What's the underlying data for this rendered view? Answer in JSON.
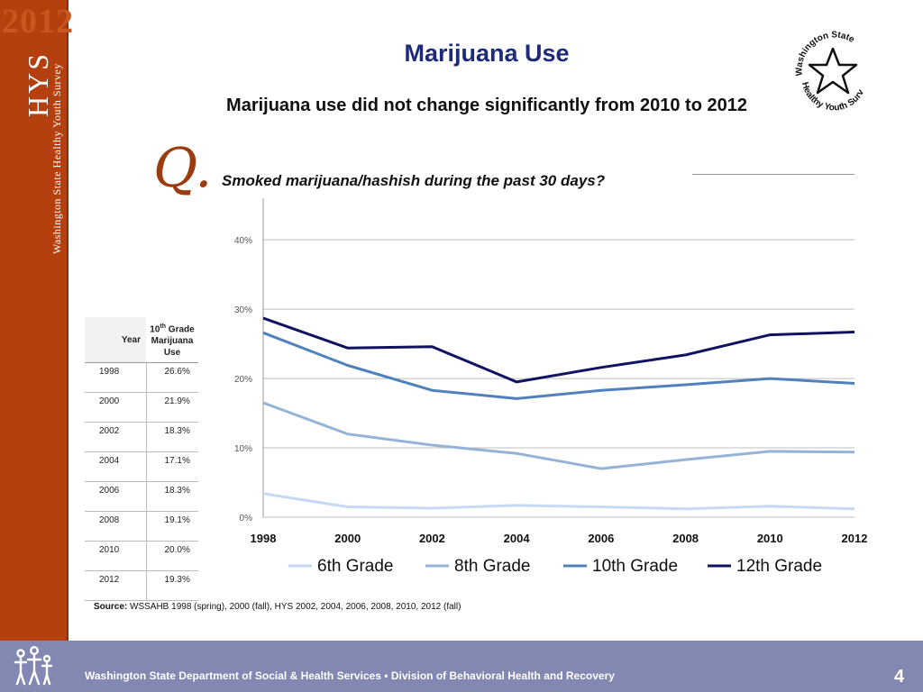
{
  "sidebar": {
    "year": "2012",
    "abbrev": "HYS",
    "name": "Washington State Healthy Youth Survey"
  },
  "header": {
    "title": "Marijuana Use",
    "subtitle": "Marijuana use did not change significantly from 2010 to 2012"
  },
  "logo": {
    "line1": "Washington State",
    "line2": "Healthy Youth Survey"
  },
  "question": {
    "marker": "Q.",
    "text": "Smoked marijuana/hashish during the past 30 days?"
  },
  "table": {
    "header_year": "Year",
    "header_value_grade": "10",
    "header_value_sup": "th",
    "header_value_rest1": " Grade",
    "header_value_rest2": "Marijuana",
    "header_value_rest3": "Use",
    "rows": [
      {
        "year": "1998",
        "value": "26.6%"
      },
      {
        "year": "2000",
        "value": "21.9%"
      },
      {
        "year": "2002",
        "value": "18.3%"
      },
      {
        "year": "2004",
        "value": "17.1%"
      },
      {
        "year": "2006",
        "value": "18.3%"
      },
      {
        "year": "2008",
        "value": "19.1%"
      },
      {
        "year": "2010",
        "value": "20.0%"
      },
      {
        "year": "2012",
        "value": "19.3%"
      }
    ]
  },
  "chart_data": {
    "type": "line",
    "title": "",
    "xlabel": "",
    "ylabel": "",
    "x": [
      "1998",
      "2000",
      "2002",
      "2004",
      "2006",
      "2008",
      "2010",
      "2012"
    ],
    "ylim": [
      0,
      40
    ],
    "yticks": [
      0,
      10,
      20,
      30,
      40
    ],
    "ytick_labels": [
      "0%",
      "10%",
      "20%",
      "30%",
      "40%"
    ],
    "grid": true,
    "legend_position": "bottom",
    "series": [
      {
        "name": "6th Grade",
        "color": "#c6d9f1",
        "values": [
          3.4,
          1.5,
          1.3,
          1.7,
          1.5,
          1.2,
          1.6,
          1.2
        ]
      },
      {
        "name": "8th Grade",
        "color": "#95b3d7",
        "values": [
          16.5,
          12.0,
          10.4,
          9.2,
          7.0,
          8.3,
          9.5,
          9.4
        ]
      },
      {
        "name": "10th Grade",
        "color": "#4f81bd",
        "values": [
          26.6,
          21.9,
          18.3,
          17.1,
          18.3,
          19.1,
          20.0,
          19.3
        ]
      },
      {
        "name": "12th Grade",
        "color": "#0f1360",
        "values": [
          28.7,
          24.4,
          24.6,
          19.5,
          21.6,
          23.4,
          26.3,
          26.7
        ]
      }
    ]
  },
  "source": {
    "label": "Source:",
    "text": " WSSAHB 1998 (spring), 2000 (fall), HYS 2002, 2004, 2006, 2008, 2010, 2012 (fall)"
  },
  "footer": {
    "text": "Washington State Department of Social & Health Services • Division of Behavioral Health and Recovery",
    "page": "4"
  }
}
